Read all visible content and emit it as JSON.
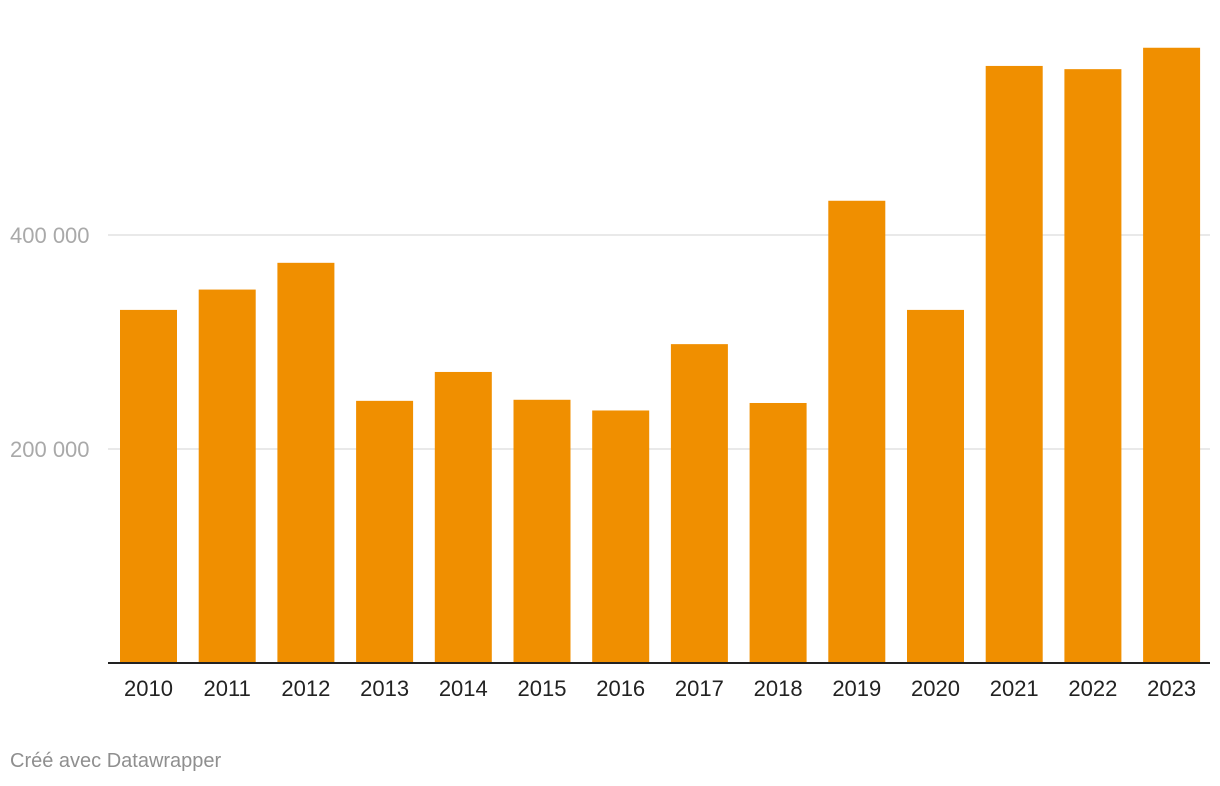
{
  "colors": {
    "bar": "#F08F00"
  },
  "footer": {
    "credit": "Créé avec Datawrapper"
  },
  "chart_data": {
    "type": "bar",
    "categories": [
      "2010",
      "2011",
      "2012",
      "2013",
      "2014",
      "2015",
      "2016",
      "2017",
      "2018",
      "2019",
      "2020",
      "2021",
      "2022",
      "2023"
    ],
    "values": [
      330000,
      349000,
      374000,
      245000,
      272000,
      246000,
      236000,
      298000,
      243000,
      432000,
      330000,
      558000,
      555000,
      575000
    ],
    "y_ticks": [
      {
        "value": 200000,
        "label": "200 000"
      },
      {
        "value": 400000,
        "label": "400 000"
      }
    ],
    "title": "",
    "xlabel": "",
    "ylabel": "",
    "ylim": [
      0,
      600000
    ],
    "grid": true,
    "legend": "none"
  }
}
